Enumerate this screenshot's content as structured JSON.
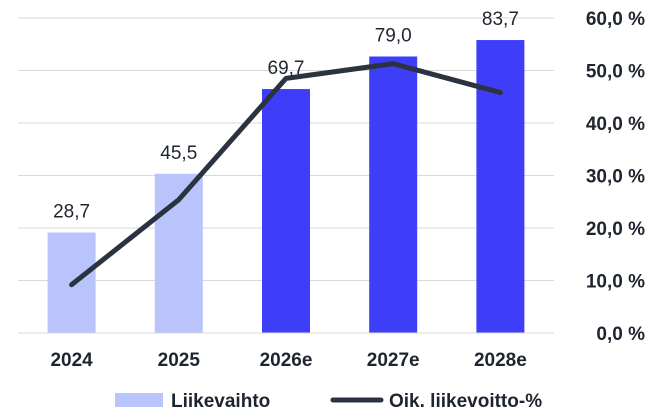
{
  "chart_data": {
    "type": "bar",
    "categories": [
      "2024",
      "2025",
      "2026e",
      "2027e",
      "2028e"
    ],
    "series": [
      {
        "name": "Liikevaihto",
        "type": "bar",
        "axis": "left",
        "values": [
          28.7,
          45.5,
          69.7,
          79.0,
          83.7
        ],
        "value_labels": [
          "28,7",
          "45,5",
          "69,7",
          "79,0",
          "83,7"
        ],
        "colors": [
          "#b8c4fb",
          "#b8c4fb",
          "#3e3ef9",
          "#3e3ef9",
          "#3e3ef9"
        ]
      },
      {
        "name": "Oik. liikevoitto-%",
        "type": "line",
        "axis": "right",
        "values": [
          9.2,
          25.4,
          48.5,
          51.3,
          45.8
        ],
        "color": "#2b3340"
      }
    ],
    "left_axis": {
      "range": [
        0,
        90
      ],
      "visible": false
    },
    "right_axis": {
      "range": [
        0,
        60
      ],
      "ticks": [
        0,
        10,
        20,
        30,
        40,
        50,
        60
      ],
      "tick_labels": [
        "0,0 %",
        "10,0 %",
        "20,0 %",
        "30,0 %",
        "40,0 %",
        "50,0 %",
        "60,0 %"
      ]
    },
    "grid": true,
    "legend": {
      "position": "bottom",
      "items": [
        {
          "label": "Liikevaihto",
          "color": "#b8c4fb",
          "marker": "bar"
        },
        {
          "label": "Oik. liikevoitto-%",
          "color": "#2b3340",
          "marker": "line"
        }
      ]
    }
  }
}
